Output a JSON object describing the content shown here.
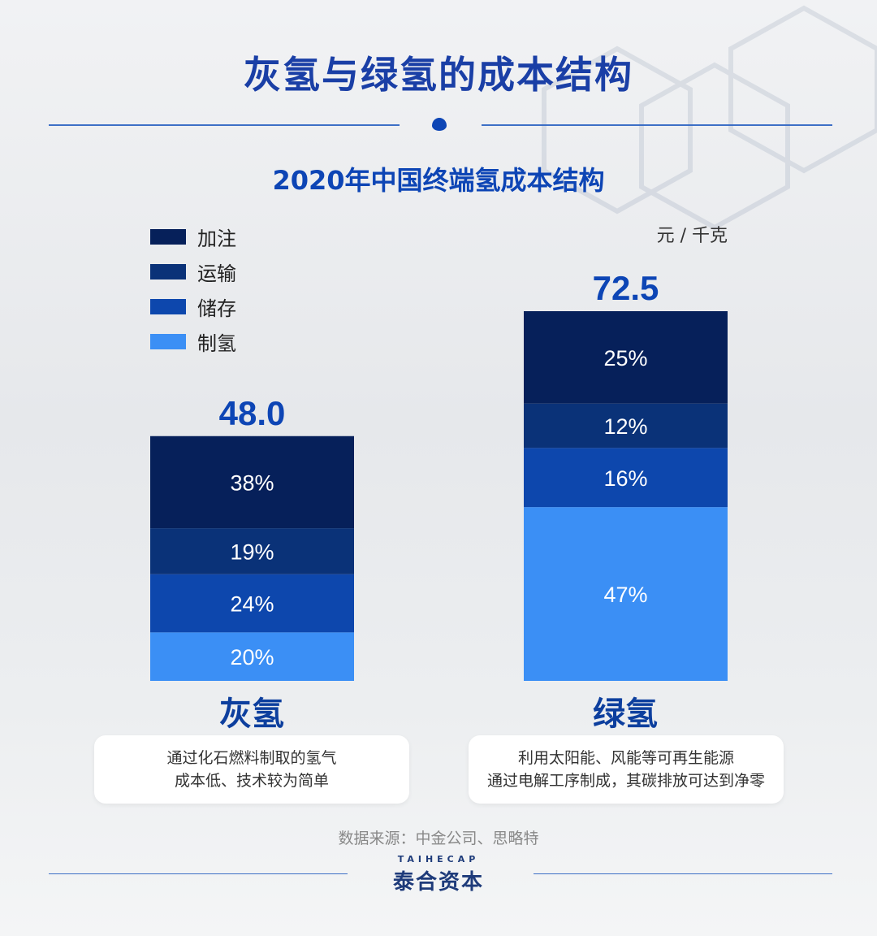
{
  "header": {
    "title": "灰氢与绿氢的成本结构"
  },
  "chart_data": {
    "type": "bar",
    "title": "2020年中国终端氢成本结构",
    "unit": "元 / 千克",
    "categories": [
      "灰氢",
      "绿氢"
    ],
    "totals": [
      48.0,
      72.5
    ],
    "totals_labels": [
      "48.0",
      "72.5"
    ],
    "series": [
      {
        "name": "制氢",
        "values": [
          20,
          47
        ],
        "labels": [
          "20%",
          "47%"
        ],
        "color": "#3b8ff5"
      },
      {
        "name": "储存",
        "values": [
          24,
          16
        ],
        "labels": [
          "24%",
          "16%"
        ],
        "color": "#0d47ad"
      },
      {
        "name": "运输",
        "values": [
          19,
          12
        ],
        "labels": [
          "19%",
          "12%"
        ],
        "color": "#0a3278"
      },
      {
        "name": "加注",
        "values": [
          38,
          25
        ],
        "labels": [
          "38%",
          "25%"
        ],
        "color": "#06205a"
      }
    ],
    "legend": [
      {
        "name": "加注",
        "color": "#06205a"
      },
      {
        "name": "运输",
        "color": "#0a3278"
      },
      {
        "name": "储存",
        "color": "#0d47ad"
      },
      {
        "name": "制氢",
        "color": "#3b8ff5"
      }
    ],
    "legend_position": "top-left",
    "grid": false
  },
  "descriptions": [
    {
      "line1": "通过化石燃料制取的氢气",
      "line2": "成本低、技术较为简单"
    },
    {
      "line1": "利用太阳能、风能等可再生能源",
      "line2": "通过电解工序制成，其碳排放可达到净零"
    }
  ],
  "footer": {
    "source": "数据来源：中金公司、思略特",
    "brand_en": "TAIHECAP",
    "brand_zh": "泰合资本"
  }
}
